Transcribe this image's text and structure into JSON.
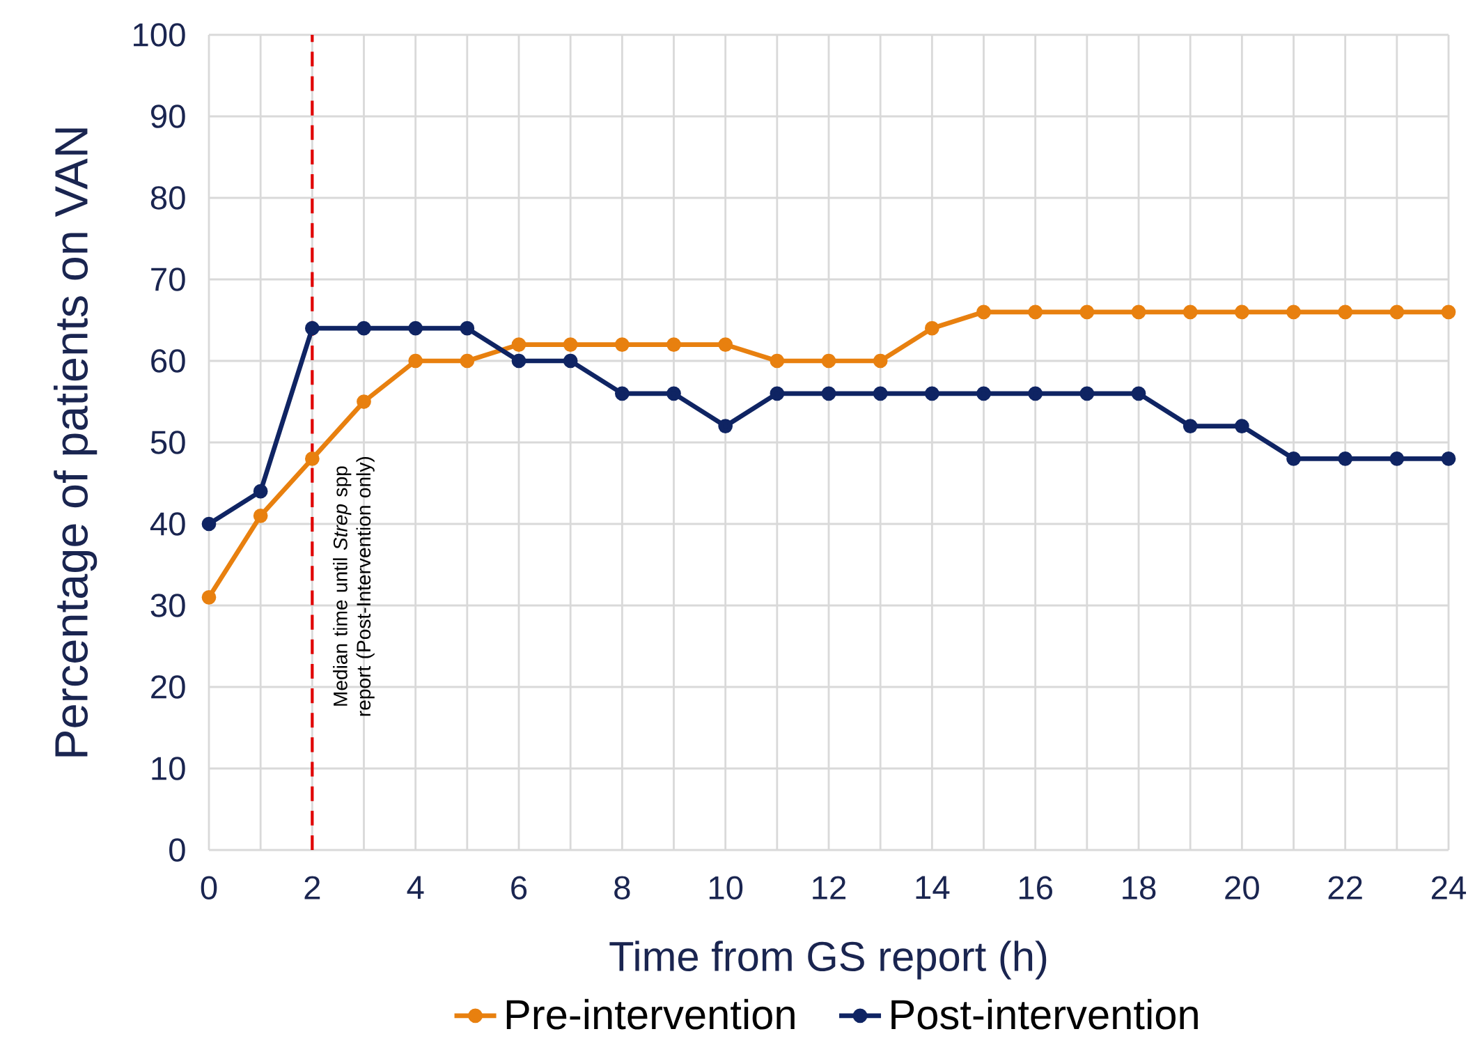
{
  "chart_data": {
    "type": "line",
    "xlabel": "Time from GS report (h)",
    "ylabel": "Percentage of patients on VAN",
    "x": [
      0,
      1,
      2,
      3,
      4,
      5,
      6,
      7,
      8,
      9,
      10,
      11,
      12,
      13,
      14,
      15,
      16,
      17,
      18,
      19,
      20,
      21,
      22,
      23,
      24
    ],
    "series": [
      {
        "name": "Pre-intervention",
        "color": "#e8800f",
        "values": [
          31,
          41,
          48,
          55,
          60,
          60,
          62,
          62,
          62,
          62,
          62,
          60,
          60,
          60,
          64,
          66,
          66,
          66,
          66,
          66,
          66,
          66,
          66,
          66,
          66
        ]
      },
      {
        "name": "Post-intervention",
        "color": "#0f2463",
        "values": [
          40,
          44,
          64,
          64,
          64,
          64,
          60,
          60,
          56,
          56,
          52,
          56,
          56,
          56,
          56,
          56,
          56,
          56,
          56,
          52,
          52,
          48,
          48,
          48,
          48
        ]
      }
    ],
    "xlim": [
      0,
      24
    ],
    "ylim": [
      0,
      100
    ],
    "xticks": [
      0,
      {
        "value": 1,
        "label": null
      },
      2,
      {
        "value": 3,
        "label": null
      },
      4,
      {
        "value": 5,
        "label": null
      },
      6,
      {
        "value": 7,
        "label": null
      },
      8,
      {
        "value": 9,
        "label": null
      },
      10,
      {
        "value": 11,
        "label": null
      },
      12,
      {
        "value": 13,
        "label": null
      },
      14,
      {
        "value": 15,
        "label": null
      },
      16,
      {
        "value": 17,
        "label": null
      },
      18,
      {
        "value": 19,
        "label": null
      },
      20,
      {
        "value": 21,
        "label": null
      },
      22,
      {
        "value": 23,
        "label": null
      },
      24
    ],
    "yticks": [
      0,
      10,
      20,
      30,
      40,
      50,
      60,
      70,
      80,
      90,
      100
    ],
    "ref_lines": [
      {
        "axis": "x",
        "value": 2,
        "label": "Median time until *Strep* spp report (Post-Intervention only)",
        "color": "#e00000",
        "line_style": "dashed"
      }
    ],
    "grid": true,
    "legend": "bottom",
    "marker": "circle",
    "line_style": "solid"
  }
}
